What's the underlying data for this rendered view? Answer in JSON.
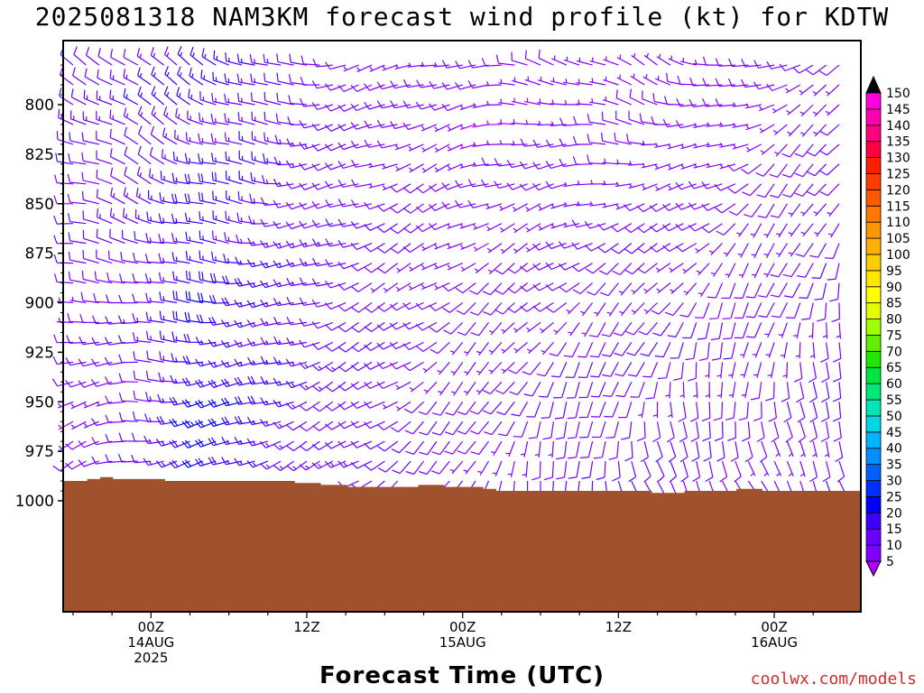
{
  "title": "2025081318 NAM3KM forecast wind profile (kt) for KDTW",
  "credit": "coolwx.com/models",
  "chart_data": {
    "type": "wind-barb-time-height",
    "xlabel": "Forecast Time (UTC)",
    "ylabel": "",
    "y_scale": "pressure (hPa, decreasing upward)",
    "ylim": [
      1000,
      775
    ],
    "y_ticks": [
      800,
      825,
      850,
      875,
      900,
      925,
      950,
      975,
      1000
    ],
    "x_ticks": [
      {
        "hour": 6,
        "line1": "00Z",
        "line2": "14AUG",
        "line3": "2025"
      },
      {
        "hour": 18,
        "line1": "12Z",
        "line2": "",
        "line3": ""
      },
      {
        "hour": 30,
        "line1": "00Z",
        "line2": "15AUG",
        "line3": ""
      },
      {
        "hour": 42,
        "line1": "12Z",
        "line2": "",
        "line3": ""
      },
      {
        "hour": 54,
        "line1": "00Z",
        "line2": "16AUG",
        "line3": ""
      }
    ],
    "xlim_hours": [
      0,
      59
    ],
    "grid": false,
    "legend": "right colorbar",
    "colorbar": {
      "labels": [
        5,
        10,
        15,
        20,
        25,
        30,
        35,
        40,
        45,
        50,
        55,
        60,
        65,
        70,
        75,
        80,
        85,
        90,
        95,
        100,
        105,
        110,
        115,
        120,
        125,
        130,
        135,
        140,
        145,
        150
      ],
      "colors": [
        "#8000ff",
        "#6a00ff",
        "#3c00ff",
        "#0000ff",
        "#0030ff",
        "#0060ff",
        "#0090ff",
        "#00b4ff",
        "#00d8e6",
        "#00e6b4",
        "#00e67a",
        "#00e640",
        "#20e600",
        "#60f000",
        "#a0ff00",
        "#e6ff00",
        "#ffff00",
        "#ffe600",
        "#ffcc00",
        "#ffb000",
        "#ff9600",
        "#ff7800",
        "#ff5a00",
        "#ff3c00",
        "#ff1e00",
        "#ff0040",
        "#ff0080",
        "#ff00b0",
        "#ff00e0",
        "#ff40ff"
      ],
      "under_color": "#b000ff",
      "over_color": "#000000"
    },
    "surface_pressure": [
      {
        "hour": 0,
        "p": 990
      },
      {
        "hour": 1.5,
        "p": 989
      },
      {
        "hour": 2.5,
        "p": 988
      },
      {
        "hour": 3.5,
        "p": 989
      },
      {
        "hour": 7.5,
        "p": 990
      },
      {
        "hour": 17.5,
        "p": 991
      },
      {
        "hour": 19.5,
        "p": 992
      },
      {
        "hour": 21.5,
        "p": 993
      },
      {
        "hour": 25,
        "p": 993
      },
      {
        "hour": 27,
        "p": 992
      },
      {
        "hour": 29,
        "p": 993
      },
      {
        "hour": 32,
        "p": 994
      },
      {
        "hour": 33,
        "p": 995
      },
      {
        "hour": 40,
        "p": 995
      },
      {
        "hour": 45,
        "p": 996
      },
      {
        "hour": 47.5,
        "p": 995
      },
      {
        "hour": 51,
        "p": 995
      },
      {
        "hour": 51.5,
        "p": 994
      },
      {
        "hour": 53.5,
        "p": 995
      },
      {
        "hour": 56,
        "p": 995
      },
      {
        "hour": 57,
        "p": 995
      },
      {
        "hour": 59,
        "p": 995
      }
    ],
    "wind_field_note": "barbs every hour and every 10 hPa; directions and speeds estimated from the figure",
    "wind_columns": [
      {
        "hour": 0,
        "dir_bot": 240,
        "dir_top": 300,
        "spd_bot": 6,
        "spd_top": 12
      },
      {
        "hour": 6,
        "dir_bot": 260,
        "dir_top": 310,
        "spd_bot": 10,
        "spd_top": 14
      },
      {
        "hour": 10,
        "dir_bot": 250,
        "dir_top": 300,
        "spd_bot": 22,
        "spd_top": 15
      },
      {
        "hour": 14,
        "dir_bot": 245,
        "dir_top": 290,
        "spd_bot": 18,
        "spd_top": 14
      },
      {
        "hour": 20,
        "dir_bot": 240,
        "dir_top": 260,
        "spd_bot": 12,
        "spd_top": 10
      },
      {
        "hour": 26,
        "dir_bot": 230,
        "dir_top": 250,
        "spd_bot": 9,
        "spd_top": 8
      },
      {
        "hour": 32,
        "dir_bot": 200,
        "dir_top": 270,
        "spd_bot": 8,
        "spd_top": 6
      },
      {
        "hour": 38,
        "dir_bot": 180,
        "dir_top": 290,
        "spd_bot": 10,
        "spd_top": 7
      },
      {
        "hour": 44,
        "dir_bot": 160,
        "dir_top": 300,
        "spd_bot": 10,
        "spd_top": 7
      },
      {
        "hour": 50,
        "dir_bot": 150,
        "dir_top": 280,
        "spd_bot": 9,
        "spd_top": 7
      },
      {
        "hour": 54,
        "dir_bot": 160,
        "dir_top": 250,
        "spd_bot": 8,
        "spd_top": 7
      },
      {
        "hour": 59,
        "dir_bot": 150,
        "dir_top": 240,
        "spd_bot": 10,
        "spd_top": 8
      }
    ]
  }
}
